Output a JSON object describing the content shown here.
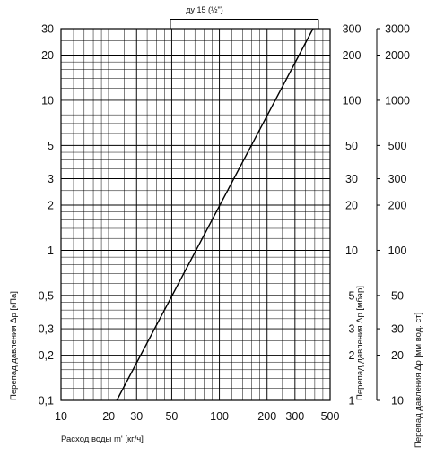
{
  "chart_data": {
    "type": "line",
    "x_scale": "log",
    "y_scale": "log",
    "xlim": [
      10,
      500
    ],
    "ylim": [
      0.1,
      30
    ],
    "grid": "on",
    "series": [
      {
        "name": "ду 15 (½\")",
        "x": [
          22.5,
          390
        ],
        "y": [
          0.1,
          30
        ]
      }
    ],
    "annotation": "ду 15 (½\")",
    "xlabel": "Расход воды m' [кг/ч]",
    "ylabel_left": "Перепад давления Δp [кПа]",
    "ylabel_right_1": "Перепад давления Δp [мбар]",
    "ylabel_right_2": "Перепад давления Δp [мм вод. ст]",
    "x_ticks": [
      {
        "value": 10,
        "label": "10"
      },
      {
        "value": 20,
        "label": "20"
      },
      {
        "value": 30,
        "label": "30"
      },
      {
        "value": 50,
        "label": "50"
      },
      {
        "value": 100,
        "label": "100"
      },
      {
        "value": 200,
        "label": "200"
      },
      {
        "value": 300,
        "label": "300"
      },
      {
        "value": 500,
        "label": "500"
      }
    ],
    "y_ticks_left": [
      {
        "value": 0.1,
        "label": "0,1"
      },
      {
        "value": 0.2,
        "label": "0,2"
      },
      {
        "value": 0.3,
        "label": "0,3"
      },
      {
        "value": 0.5,
        "label": "0,5"
      },
      {
        "value": 1,
        "label": "1"
      },
      {
        "value": 2,
        "label": "2"
      },
      {
        "value": 3,
        "label": "3"
      },
      {
        "value": 5,
        "label": "5"
      },
      {
        "value": 10,
        "label": "10"
      },
      {
        "value": 20,
        "label": "20"
      },
      {
        "value": 30,
        "label": "30"
      }
    ],
    "y_ticks_mbar": [
      {
        "value": 0.1,
        "label": "1"
      },
      {
        "value": 0.2,
        "label": "2"
      },
      {
        "value": 0.3,
        "label": "3"
      },
      {
        "value": 0.5,
        "label": "5"
      },
      {
        "value": 1,
        "label": "10"
      },
      {
        "value": 2,
        "label": "20"
      },
      {
        "value": 3,
        "label": "30"
      },
      {
        "value": 5,
        "label": "50"
      },
      {
        "value": 10,
        "label": "100"
      },
      {
        "value": 20,
        "label": "200"
      },
      {
        "value": 30,
        "label": "300"
      }
    ],
    "y_ticks_mmwc": [
      {
        "value": 0.1,
        "label": "10"
      },
      {
        "value": 0.2,
        "label": "20"
      },
      {
        "value": 0.3,
        "label": "30"
      },
      {
        "value": 0.5,
        "label": "50"
      },
      {
        "value": 1,
        "label": "100"
      },
      {
        "value": 2,
        "label": "200"
      },
      {
        "value": 3,
        "label": "300"
      },
      {
        "value": 5,
        "label": "500"
      },
      {
        "value": 10,
        "label": "1000"
      },
      {
        "value": 20,
        "label": "2000"
      },
      {
        "value": 30,
        "label": "3000"
      }
    ]
  }
}
